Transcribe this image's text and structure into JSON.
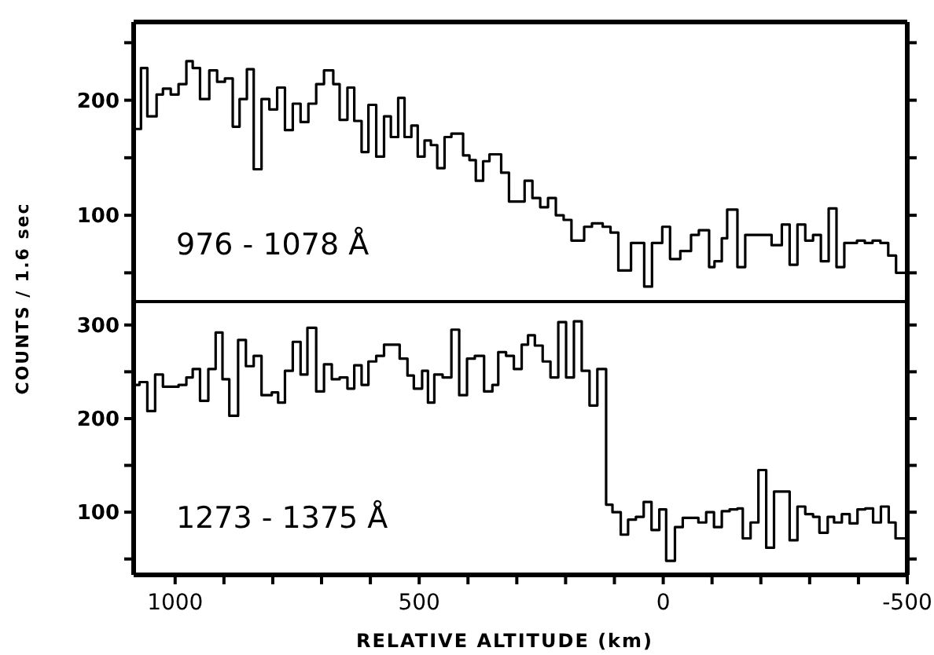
{
  "chart_data": [
    {
      "type": "step",
      "ylabel": "COUNTS / 1.6 sec",
      "annotations": [
        "976 - 1078 Å"
      ],
      "xlim": [
        1085,
        -500
      ],
      "ylim": [
        25,
        268
      ],
      "tick_labels": "y",
      "yticks": [
        {
          "value": 50,
          "label": null
        },
        100,
        {
          "value": 150,
          "label": null
        },
        200,
        {
          "value": 250,
          "label": null
        }
      ],
      "series": [
        {
          "color": "#000000",
          "x": [
            1084,
            1070,
            1057,
            1038,
            1025,
            1009,
            993,
            977,
            964,
            949,
            930,
            914,
            898,
            882,
            868,
            853,
            839,
            823,
            807,
            791,
            775,
            759,
            743,
            727,
            711,
            695,
            676,
            663,
            647,
            633,
            618,
            604,
            588,
            572,
            558,
            543,
            530,
            516,
            503,
            489,
            476,
            463,
            448,
            434,
            410,
            397,
            384,
            369,
            356,
            332,
            316,
            284,
            268,
            252,
            236,
            220,
            204,
            188,
            162,
            146,
            124,
            108,
            92,
            66,
            39,
            23,
            2,
            -14,
            -35,
            -57,
            -73,
            -94,
            -105,
            -120,
            -131,
            -152,
            -168,
            -184,
            -222,
            -243,
            -259,
            -275,
            -291,
            -307,
            -323,
            -339,
            -355,
            -371,
            -397,
            -413,
            -429,
            -445,
            -461,
            -477,
            -500
          ],
          "values": [
            175,
            228,
            186,
            205,
            210,
            205,
            214,
            234,
            228,
            201,
            226,
            216,
            219,
            177,
            201,
            227,
            140,
            201,
            192,
            211,
            174,
            197,
            181,
            197,
            214,
            226,
            214,
            183,
            211,
            182,
            155,
            196,
            151,
            186,
            168,
            202,
            168,
            178,
            151,
            165,
            161,
            141,
            168,
            171,
            152,
            148,
            130,
            147,
            153,
            137,
            112,
            130,
            115,
            107,
            115,
            100,
            96,
            78,
            90,
            93,
            90,
            85,
            52,
            76,
            38,
            76,
            90,
            62,
            69,
            83,
            87,
            55,
            60,
            80,
            105,
            55,
            83,
            83,
            74,
            92,
            57,
            92,
            78,
            83,
            60,
            106,
            55,
            76,
            78,
            76,
            78,
            76,
            65,
            50,
            50
          ]
        }
      ]
    },
    {
      "type": "step",
      "xlabel": "RELATIVE ALTITUDE (km)",
      "annotations": [
        "1273 - 1375 Å"
      ],
      "xlim": [
        1085,
        -500
      ],
      "ylim": [
        33,
        325
      ],
      "xticks": [
        1000,
        {
          "value": 900,
          "label": null
        },
        {
          "value": 800,
          "label": null
        },
        {
          "value": 700,
          "label": null
        },
        {
          "value": 600,
          "label": null
        },
        500,
        {
          "value": 400,
          "label": null
        },
        {
          "value": 300,
          "label": null
        },
        {
          "value": 200,
          "label": null
        },
        {
          "value": 100,
          "label": null
        },
        0,
        {
          "value": -100,
          "label": null
        },
        {
          "value": -200,
          "label": null
        },
        {
          "value": -300,
          "label": null
        },
        {
          "value": -400,
          "label": null
        },
        {
          "value": -500,
          "label": "-500"
        }
      ],
      "yticks": [
        {
          "value": 50,
          "label": null
        },
        100,
        {
          "value": 150,
          "label": null
        },
        200,
        {
          "value": 250,
          "label": null
        },
        300
      ],
      "series": [
        {
          "color": "#000000",
          "x": [
            1084,
            1073,
            1057,
            1041,
            1025,
            993,
            977,
            964,
            949,
            932,
            917,
            903,
            889,
            871,
            855,
            839,
            823,
            802,
            789,
            775,
            759,
            743,
            729,
            711,
            695,
            679,
            663,
            647,
            633,
            618,
            604,
            588,
            572,
            540,
            524,
            511,
            494,
            482,
            469,
            452,
            434,
            418,
            402,
            386,
            367,
            350,
            338,
            322,
            306,
            290,
            277,
            263,
            247,
            231,
            215,
            199,
            183,
            167,
            151,
            135,
            117,
            104,
            87,
            72,
            56,
            40,
            24,
            8,
            -6,
            -24,
            -40,
            -72,
            -88,
            -104,
            -120,
            -136,
            -152,
            -163,
            -179,
            -195,
            -211,
            -227,
            -259,
            -275,
            -291,
            -307,
            -320,
            -337,
            -350,
            -366,
            -382,
            -398,
            -414,
            -430,
            -446,
            -462,
            -476,
            -500
          ],
          "values": [
            236,
            239,
            208,
            247,
            234,
            236,
            244,
            253,
            219,
            253,
            292,
            242,
            203,
            284,
            256,
            267,
            225,
            228,
            217,
            251,
            282,
            247,
            297,
            229,
            258,
            242,
            244,
            232,
            257,
            236,
            261,
            267,
            279,
            264,
            246,
            232,
            251,
            217,
            247,
            244,
            295,
            225,
            264,
            267,
            229,
            236,
            271,
            267,
            253,
            279,
            289,
            278,
            261,
            244,
            303,
            244,
            304,
            251,
            214,
            253,
            108,
            100,
            76,
            92,
            95,
            111,
            81,
            103,
            48,
            84,
            94,
            89,
            100,
            84,
            101,
            103,
            104,
            72,
            89,
            145,
            62,
            122,
            70,
            106,
            98,
            95,
            78,
            95,
            89,
            98,
            88,
            103,
            104,
            89,
            106,
            89,
            72,
            72
          ]
        }
      ]
    }
  ]
}
